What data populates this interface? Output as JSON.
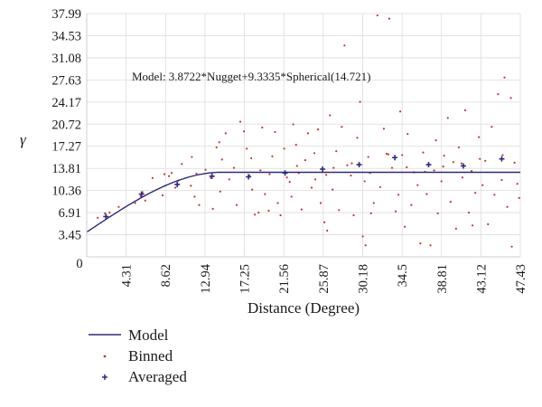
{
  "chart_data": {
    "type": "scatter",
    "xlabel": "Distance (Degree)",
    "ylabel": "γ",
    "model_text": "Model: 3.8722*Nugget+9.3335*Spherical(14.721)",
    "xlim": [
      0,
      47.43
    ],
    "ylim": [
      0,
      37.99
    ],
    "x_ticks": [
      "0",
      "4.31",
      "8.62",
      "12.94",
      "17.25",
      "21.56",
      "25.87",
      "30.18",
      "34.5",
      "38.81",
      "43.12",
      "47.43"
    ],
    "y_ticks": [
      "3.45",
      "6.91",
      "10.36",
      "13.81",
      "17.27",
      "20.72",
      "24.17",
      "27.63",
      "31.08",
      "34.53",
      "37.99"
    ],
    "grid": true,
    "model": {
      "nugget": 3.8722,
      "sill": 9.3335,
      "range": 14.721
    },
    "series": [
      {
        "name": "Model",
        "kind": "line",
        "color": "#2e2a7a"
      },
      {
        "name": "Binned",
        "kind": "points",
        "color": "#c0392b",
        "points": [
          [
            1.2,
            6.1
          ],
          [
            2.0,
            6.8
          ],
          [
            3.5,
            7.8
          ],
          [
            5.3,
            8.4
          ],
          [
            5.9,
            9.5
          ],
          [
            6.1,
            10.1
          ],
          [
            6.4,
            8.8
          ],
          [
            8.3,
            9.6
          ],
          [
            8.5,
            12.9
          ],
          [
            9.0,
            12.6
          ],
          [
            9.7,
            10.8
          ],
          [
            10.0,
            11.9
          ],
          [
            10.4,
            14.5
          ],
          [
            11.4,
            11.1
          ],
          [
            11.5,
            15.6
          ],
          [
            12.0,
            13.0
          ],
          [
            12.3,
            8.1
          ],
          [
            13.6,
            12.3
          ],
          [
            13.8,
            7.5
          ],
          [
            14.2,
            17.1
          ],
          [
            14.5,
            17.9
          ],
          [
            14.8,
            15.2
          ],
          [
            15.6,
            12.1
          ],
          [
            16.1,
            13.9
          ],
          [
            16.4,
            8.1
          ],
          [
            17.2,
            19.6
          ],
          [
            17.5,
            16.9
          ],
          [
            17.8,
            12.7
          ],
          [
            18.0,
            15.4
          ],
          [
            18.4,
            6.6
          ],
          [
            18.8,
            6.9
          ],
          [
            19.2,
            20.2
          ],
          [
            19.5,
            9.8
          ],
          [
            19.9,
            7.2
          ],
          [
            20.3,
            15.7
          ],
          [
            20.6,
            19.5
          ],
          [
            20.9,
            8.4
          ],
          [
            21.2,
            6.5
          ],
          [
            21.6,
            16.9
          ],
          [
            21.9,
            12.4
          ],
          [
            22.2,
            11.7
          ],
          [
            22.6,
            20.7
          ],
          [
            22.9,
            17.5
          ],
          [
            23.2,
            13.1
          ],
          [
            23.5,
            7.4
          ],
          [
            23.9,
            15.1
          ],
          [
            24.2,
            19.3
          ],
          [
            24.6,
            10.8
          ],
          [
            24.9,
            16.2
          ],
          [
            25.3,
            19.9
          ],
          [
            25.6,
            8.4
          ],
          [
            26.0,
            5.4
          ],
          [
            26.3,
            4.1
          ],
          [
            26.6,
            22.1
          ],
          [
            26.9,
            10.5
          ],
          [
            27.3,
            16.5
          ],
          [
            27.6,
            7.3
          ],
          [
            27.9,
            20.3
          ],
          [
            28.2,
            33.0
          ],
          [
            28.5,
            14.3
          ],
          [
            28.9,
            12.7
          ],
          [
            29.2,
            6.5
          ],
          [
            29.6,
            18.6
          ],
          [
            29.9,
            24.2
          ],
          [
            30.2,
            3.2
          ],
          [
            30.5,
            1.8
          ],
          [
            30.8,
            15.6
          ],
          [
            31.1,
            6.8
          ],
          [
            31.4,
            8.4
          ],
          [
            31.8,
            37.7
          ],
          [
            32.1,
            10.9
          ],
          [
            32.5,
            20.0
          ],
          [
            32.8,
            16.1
          ],
          [
            33.1,
            37.2
          ],
          [
            33.4,
            13.9
          ],
          [
            33.8,
            7.1
          ],
          [
            34.1,
            9.7
          ],
          [
            34.5,
            15.9
          ],
          [
            34.8,
            4.7
          ],
          [
            35.1,
            19.2
          ],
          [
            35.5,
            8.1
          ],
          [
            35.8,
            13.2
          ],
          [
            36.2,
            11.2
          ],
          [
            36.5,
            2.1
          ],
          [
            36.8,
            16.3
          ],
          [
            37.2,
            9.8
          ],
          [
            37.6,
            1.8
          ],
          [
            38.0,
            13.5
          ],
          [
            38.4,
            6.8
          ],
          [
            38.8,
            11.8
          ],
          [
            39.1,
            15.8
          ],
          [
            39.5,
            21.7
          ],
          [
            39.8,
            8.6
          ],
          [
            40.1,
            14.8
          ],
          [
            40.4,
            4.4
          ],
          [
            40.7,
            17.1
          ],
          [
            41.1,
            12.4
          ],
          [
            41.4,
            22.9
          ],
          [
            41.8,
            6.9
          ],
          [
            42.1,
            13.4
          ],
          [
            42.5,
            10.0
          ],
          [
            42.9,
            18.7
          ],
          [
            43.3,
            11.2
          ],
          [
            43.6,
            15.0
          ],
          [
            43.9,
            5.1
          ],
          [
            44.3,
            20.3
          ],
          [
            44.6,
            9.7
          ],
          [
            45.0,
            25.4
          ],
          [
            45.4,
            12.0
          ],
          [
            45.7,
            28.0
          ],
          [
            46.0,
            7.8
          ],
          [
            46.4,
            24.8
          ],
          [
            46.8,
            14.7
          ],
          [
            47.1,
            11.4
          ],
          [
            47.3,
            9.2
          ],
          [
            2.5,
            6.9
          ],
          [
            7.2,
            12.3
          ],
          [
            9.3,
            13.1
          ],
          [
            13.0,
            13.6
          ],
          [
            15.2,
            19.3
          ],
          [
            16.8,
            21.1
          ],
          [
            19.0,
            13.5
          ],
          [
            20.0,
            12.9
          ],
          [
            23.0,
            14.2
          ],
          [
            25.0,
            12.1
          ],
          [
            27.0,
            13.9
          ],
          [
            29.0,
            14.6
          ],
          [
            31.0,
            13.1
          ],
          [
            33.0,
            16.0
          ],
          [
            35.0,
            14.0
          ],
          [
            37.0,
            13.3
          ],
          [
            39.0,
            14.1
          ],
          [
            41.0,
            14.6
          ],
          [
            43.0,
            15.3
          ],
          [
            45.5,
            15.9
          ],
          [
            46.5,
            1.6
          ],
          [
            42.2,
            4.9
          ],
          [
            38.2,
            18.2
          ],
          [
            34.3,
            22.7
          ],
          [
            30.4,
            11.8
          ],
          [
            26.2,
            12.8
          ],
          [
            22.4,
            9.4
          ],
          [
            18.1,
            10.5
          ],
          [
            14.6,
            10.2
          ],
          [
            11.8,
            9.4
          ]
        ]
      },
      {
        "name": "Averaged",
        "kind": "points",
        "color": "#2e2a7a",
        "points": [
          [
            2.1,
            6.3
          ],
          [
            6.0,
            9.8
          ],
          [
            9.9,
            11.3
          ],
          [
            13.7,
            12.6
          ],
          [
            17.7,
            12.5
          ],
          [
            21.7,
            13.1
          ],
          [
            25.8,
            13.7
          ],
          [
            29.8,
            14.4
          ],
          [
            33.7,
            15.5
          ],
          [
            37.4,
            14.4
          ],
          [
            41.2,
            14.2
          ],
          [
            45.4,
            15.3
          ]
        ]
      }
    ],
    "legend_placement": "bottom-left"
  },
  "legend": {
    "items": [
      {
        "label": "Model",
        "symbol": "line"
      },
      {
        "label": "Binned",
        "symbol": "dot"
      },
      {
        "label": "Averaged",
        "symbol": "plus"
      }
    ]
  }
}
